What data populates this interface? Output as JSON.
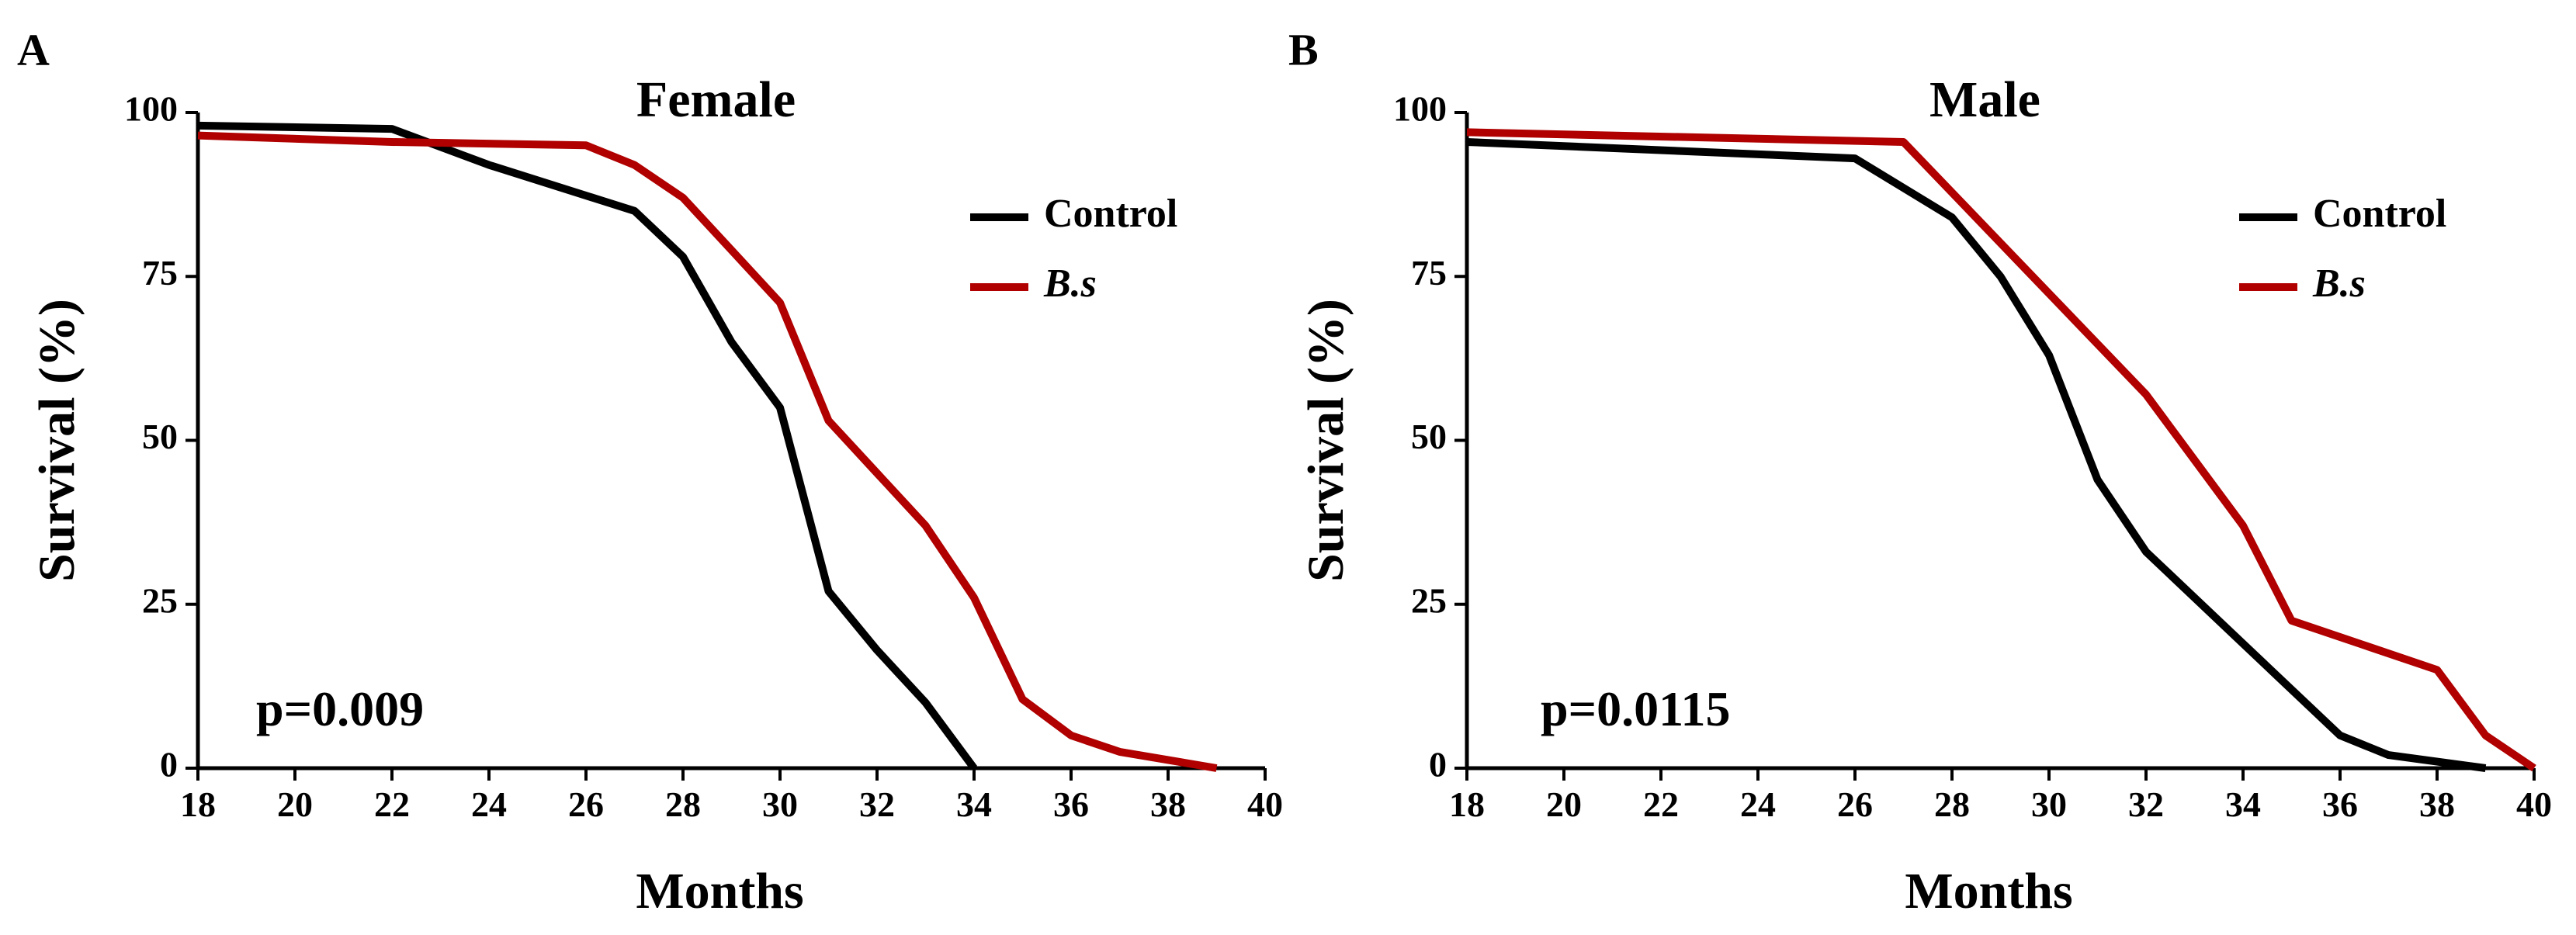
{
  "chart_data": [
    {
      "type": "line",
      "panel_label": "A",
      "title": "Female",
      "xlabel": "Months",
      "ylabel": "Survival (%)",
      "xlim": [
        18,
        40
      ],
      "ylim": [
        0,
        100
      ],
      "x_ticks": [
        18,
        20,
        22,
        24,
        26,
        28,
        30,
        32,
        34,
        36,
        38,
        40
      ],
      "y_ticks": [
        0,
        25,
        50,
        75,
        100
      ],
      "annotation": "p=0.009",
      "legend_position": "top-right",
      "series": [
        {
          "name": "Control",
          "color": "#000000",
          "italic": false,
          "points": [
            [
              18,
              98
            ],
            [
              22,
              97.5
            ],
            [
              24,
              92
            ],
            [
              27,
              85
            ],
            [
              28,
              78
            ],
            [
              29,
              65
            ],
            [
              30,
              55
            ],
            [
              31,
              27
            ],
            [
              32,
              18
            ],
            [
              33,
              10
            ],
            [
              34,
              0
            ]
          ]
        },
        {
          "name": "B.s",
          "color": "#b00000",
          "italic": true,
          "points": [
            [
              18,
              96.5
            ],
            [
              22,
              95.5
            ],
            [
              26,
              95
            ],
            [
              27,
              92
            ],
            [
              28,
              87
            ],
            [
              29,
              79
            ],
            [
              30,
              71
            ],
            [
              31,
              53
            ],
            [
              32,
              45
            ],
            [
              33,
              37
            ],
            [
              34,
              26
            ],
            [
              35,
              10.5
            ],
            [
              36,
              5
            ],
            [
              37,
              2.5
            ],
            [
              39,
              0
            ]
          ]
        }
      ]
    },
    {
      "type": "line",
      "panel_label": "B",
      "title": "Male",
      "xlabel": "Months",
      "ylabel": "Survival (%)",
      "xlim": [
        18,
        40
      ],
      "ylim": [
        0,
        100
      ],
      "x_ticks": [
        18,
        20,
        22,
        24,
        26,
        28,
        30,
        32,
        34,
        36,
        38,
        40
      ],
      "y_ticks": [
        0,
        25,
        50,
        75,
        100
      ],
      "annotation": "p=0.0115",
      "legend_position": "top-right",
      "series": [
        {
          "name": "Control",
          "color": "#000000",
          "italic": false,
          "points": [
            [
              18,
              95.5
            ],
            [
              26,
              93
            ],
            [
              28,
              84
            ],
            [
              29,
              75
            ],
            [
              30,
              63
            ],
            [
              31,
              44
            ],
            [
              32,
              33
            ],
            [
              34,
              19
            ],
            [
              36,
              5
            ],
            [
              37,
              2
            ],
            [
              39,
              0
            ]
          ]
        },
        {
          "name": "B.s",
          "color": "#b00000",
          "italic": true,
          "points": [
            [
              18,
              97
            ],
            [
              27,
              95.5
            ],
            [
              32,
              57
            ],
            [
              34,
              37
            ],
            [
              35,
              22.5
            ],
            [
              38,
              15
            ],
            [
              39,
              5
            ],
            [
              40,
              0
            ]
          ]
        }
      ]
    }
  ]
}
